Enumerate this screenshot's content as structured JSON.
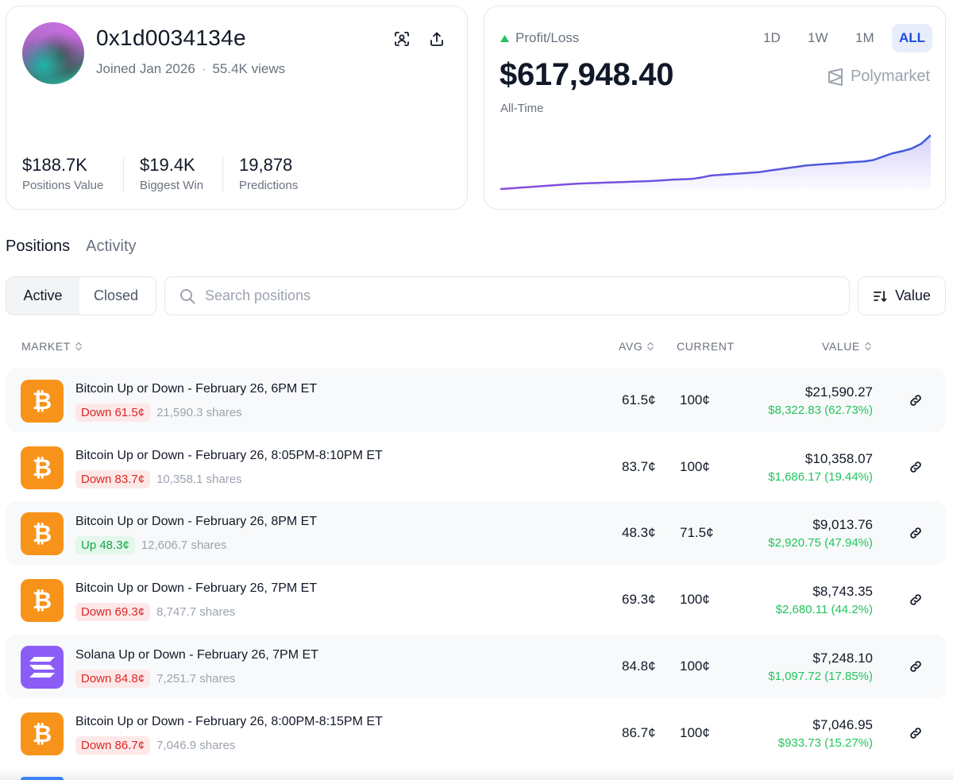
{
  "profile": {
    "username": "0x1d0034134e",
    "joined": "Joined Jan 2026",
    "separator": "·",
    "views": "55.4K views",
    "stats": [
      {
        "value": "$188.7K",
        "label": "Positions Value"
      },
      {
        "value": "$19.4K",
        "label": "Biggest Win"
      },
      {
        "value": "19,878",
        "label": "Predictions"
      }
    ]
  },
  "pnl": {
    "label": "Profit/Loss",
    "value": "$617,948.40",
    "period": "All-Time",
    "brand": "Polymarket",
    "ranges": [
      "1D",
      "1W",
      "1M",
      "ALL"
    ],
    "active_range": "ALL",
    "line_color": "#6d5ce8",
    "series": [
      0,
      1,
      2,
      3,
      4,
      5,
      6,
      7,
      8,
      8.5,
      9,
      9.5,
      10,
      10.5,
      11,
      11.5,
      12,
      13,
      14,
      14.5,
      15,
      17,
      20,
      21,
      22,
      23,
      24,
      25,
      27,
      29,
      31,
      33,
      35,
      36,
      37,
      38,
      39,
      40,
      41,
      43,
      48,
      53,
      56,
      60,
      67,
      80
    ]
  },
  "tabs": [
    "Positions",
    "Activity"
  ],
  "active_tab": "Positions",
  "filter": {
    "active": "Active",
    "closed": "Closed"
  },
  "search": {
    "placeholder": "Search positions"
  },
  "sort": {
    "label": "Value"
  },
  "table": {
    "headers": {
      "market": "MARKET",
      "avg": "AVG",
      "current": "CURRENT",
      "value": "VALUE"
    },
    "rows": [
      {
        "icon": "bitcoin-icon",
        "title": "Bitcoin Up or Down - February 26, 6PM ET",
        "outcome": "Down 61.5¢",
        "direction": "down",
        "shares": "21,590.3 shares",
        "avg": "61.5¢",
        "current": "100¢",
        "value": "$21,590.27",
        "gain": "$8,322.83 (62.73%)"
      },
      {
        "icon": "bitcoin-icon",
        "title": "Bitcoin Up or Down - February 26, 8:05PM-8:10PM ET",
        "outcome": "Down 83.7¢",
        "direction": "down",
        "shares": "10,358.1 shares",
        "avg": "83.7¢",
        "current": "100¢",
        "value": "$10,358.07",
        "gain": "$1,686.17 (19.44%)"
      },
      {
        "icon": "bitcoin-icon",
        "title": "Bitcoin Up or Down - February 26, 8PM ET",
        "outcome": "Up 48.3¢",
        "direction": "up",
        "shares": "12,606.7 shares",
        "avg": "48.3¢",
        "current": "71.5¢",
        "value": "$9,013.76",
        "gain": "$2,920.75 (47.94%)"
      },
      {
        "icon": "bitcoin-icon",
        "title": "Bitcoin Up or Down - February 26, 7PM ET",
        "outcome": "Down 69.3¢",
        "direction": "down",
        "shares": "8,747.7 shares",
        "avg": "69.3¢",
        "current": "100¢",
        "value": "$8,743.35",
        "gain": "$2,680.11 (44.2%)"
      },
      {
        "icon": "solana-icon",
        "title": "Solana Up or Down - February 26, 7PM ET",
        "outcome": "Down 84.8¢",
        "direction": "down",
        "shares": "7,251.7 shares",
        "avg": "84.8¢",
        "current": "100¢",
        "value": "$7,248.10",
        "gain": "$1,097.72 (17.85%)"
      },
      {
        "icon": "bitcoin-icon",
        "title": "Bitcoin Up or Down - February 26, 8:00PM-8:15PM ET",
        "outcome": "Down 86.7¢",
        "direction": "down",
        "shares": "7,046.9 shares",
        "avg": "86.7¢",
        "current": "100¢",
        "value": "$7,046.95",
        "gain": "$933.73 (15.27%)"
      }
    ]
  }
}
